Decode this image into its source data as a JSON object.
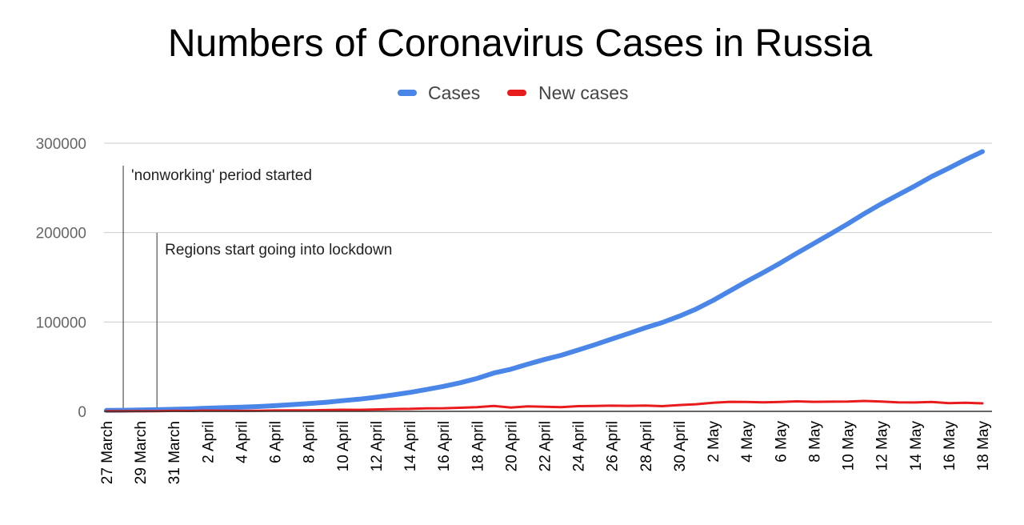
{
  "chart_data": {
    "type": "line",
    "title": "Numbers of Coronavirus Cases in Russia",
    "xlabel": "",
    "ylabel": "",
    "x": [
      "27 March",
      "28 March",
      "29 March",
      "30 March",
      "31 March",
      "1 April",
      "2 April",
      "3 April",
      "4 April",
      "5 April",
      "6 April",
      "7 April",
      "8 April",
      "9 April",
      "10 April",
      "11 April",
      "12 April",
      "13 April",
      "14 April",
      "15 April",
      "16 April",
      "17 April",
      "18 April",
      "19 April",
      "20 April",
      "21 April",
      "22 April",
      "23 April",
      "24 April",
      "25 April",
      "26 April",
      "27 April",
      "28 April",
      "29 April",
      "30 April",
      "1 May",
      "2 May",
      "3 May",
      "4 May",
      "5 May",
      "6 May",
      "7 May",
      "8 May",
      "9 May",
      "10 May",
      "11 May",
      "12 May",
      "13 May",
      "14 May",
      "15 May",
      "16 May",
      "17 May",
      "18 May"
    ],
    "x_tick_labels": [
      "27 March",
      "29 March",
      "31 March",
      "2 April",
      "4 April",
      "6 April",
      "8 April",
      "10 April",
      "12 April",
      "14 April",
      "16 April",
      "18 April",
      "20 April",
      "22 April",
      "24 April",
      "26 April",
      "28 April",
      "30 April",
      "2 May",
      "4 May",
      "6 May",
      "8 May",
      "10 May",
      "12 May",
      "14 May",
      "16 May",
      "18 May"
    ],
    "y_ticks": [
      "0",
      "100000",
      "200000",
      "300000"
    ],
    "ylim": [
      0,
      300000
    ],
    "grid": true,
    "legend_position": "top",
    "series": [
      {
        "name": "Cases",
        "color": "#4a86e8",
        "values": [
          1036,
          1264,
          1534,
          1836,
          2337,
          2777,
          3548,
          4149,
          4731,
          5389,
          6343,
          7497,
          8672,
          10131,
          11917,
          13584,
          15770,
          18328,
          21102,
          24490,
          27938,
          32008,
          36793,
          42853,
          47121,
          52763,
          57999,
          62773,
          68622,
          74588,
          80949,
          87147,
          93558,
          99399,
          106498,
          114431,
          124054,
          134686,
          145268,
          155370,
          165929,
          177160,
          187859,
          198676,
          209688,
          221344,
          232243,
          242271,
          252245,
          262843,
          272043,
          281752,
          290678
        ]
      },
      {
        "name": "New cases",
        "color": "#e81c1c",
        "values": [
          196,
          228,
          270,
          302,
          501,
          440,
          771,
          601,
          582,
          658,
          954,
          1154,
          1175,
          1459,
          1786,
          1667,
          2186,
          2558,
          2774,
          3388,
          3448,
          4070,
          4785,
          6060,
          4268,
          5642,
          5236,
          4774,
          5849,
          5966,
          6361,
          6198,
          6411,
          5841,
          7099,
          7933,
          9623,
          10633,
          10581,
          10102,
          10559,
          11231,
          10699,
          10817,
          11012,
          11656,
          10899,
          10028,
          9974,
          10598,
          9200,
          9709,
          8926
        ]
      }
    ],
    "annotations": [
      {
        "x_index": 1,
        "label": "'nonworking' period started"
      },
      {
        "x_index": 3,
        "label": "Regions start going into lockdown"
      }
    ]
  }
}
